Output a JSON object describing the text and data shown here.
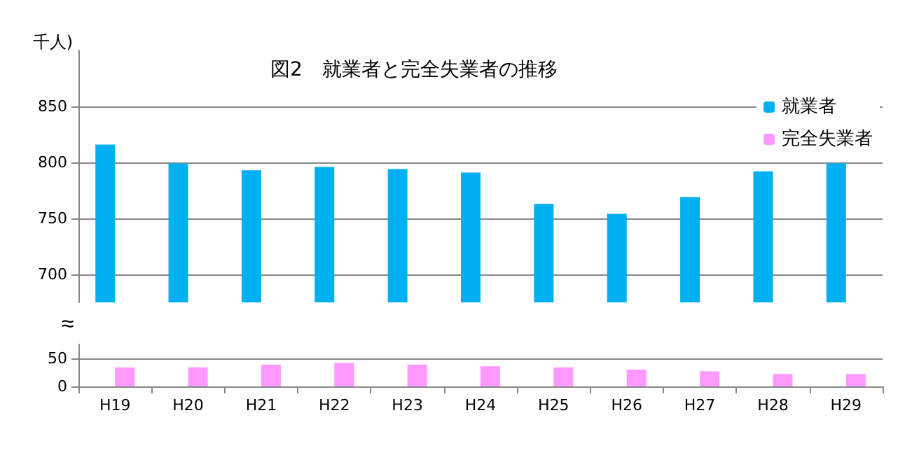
{
  "chart_data": [
    {
      "type": "bar",
      "title": "図2　就業者と完全失業者の推移",
      "ylabel": "千人)",
      "series": [
        {
          "name": "就業者",
          "color": "#00b0f0",
          "values": [
            816,
            799,
            793,
            796,
            794,
            791,
            763,
            754,
            769,
            792,
            799
          ]
        },
        {
          "name": "完全失業者",
          "color": "#ff99ff",
          "values": [
            null,
            null,
            null,
            null,
            null,
            null,
            null,
            null,
            null,
            null,
            null
          ]
        }
      ],
      "ylim": [
        675,
        900
      ],
      "yticks": [
        700,
        750,
        800,
        850
      ],
      "grid": "y",
      "legend": "top right",
      "tick_labels": "y"
    },
    {
      "type": "bar",
      "annotations": [
        "≈"
      ],
      "categories": [
        "H19",
        "H20",
        "H21",
        "H22",
        "H23",
        "H24",
        "H25",
        "H26",
        "H27",
        "H28",
        "H29"
      ],
      "series": [
        {
          "color": "#00b0f0",
          "values": [
            null,
            null,
            null,
            null,
            null,
            null,
            null,
            null,
            null,
            null,
            null
          ]
        },
        {
          "color": "#ff99ff",
          "values": [
            34,
            34,
            39,
            42,
            39,
            36,
            34,
            30,
            27,
            22,
            22
          ]
        }
      ],
      "ylim": [
        0,
        75
      ],
      "yticks": [
        0,
        50
      ],
      "grid": "y"
    }
  ]
}
